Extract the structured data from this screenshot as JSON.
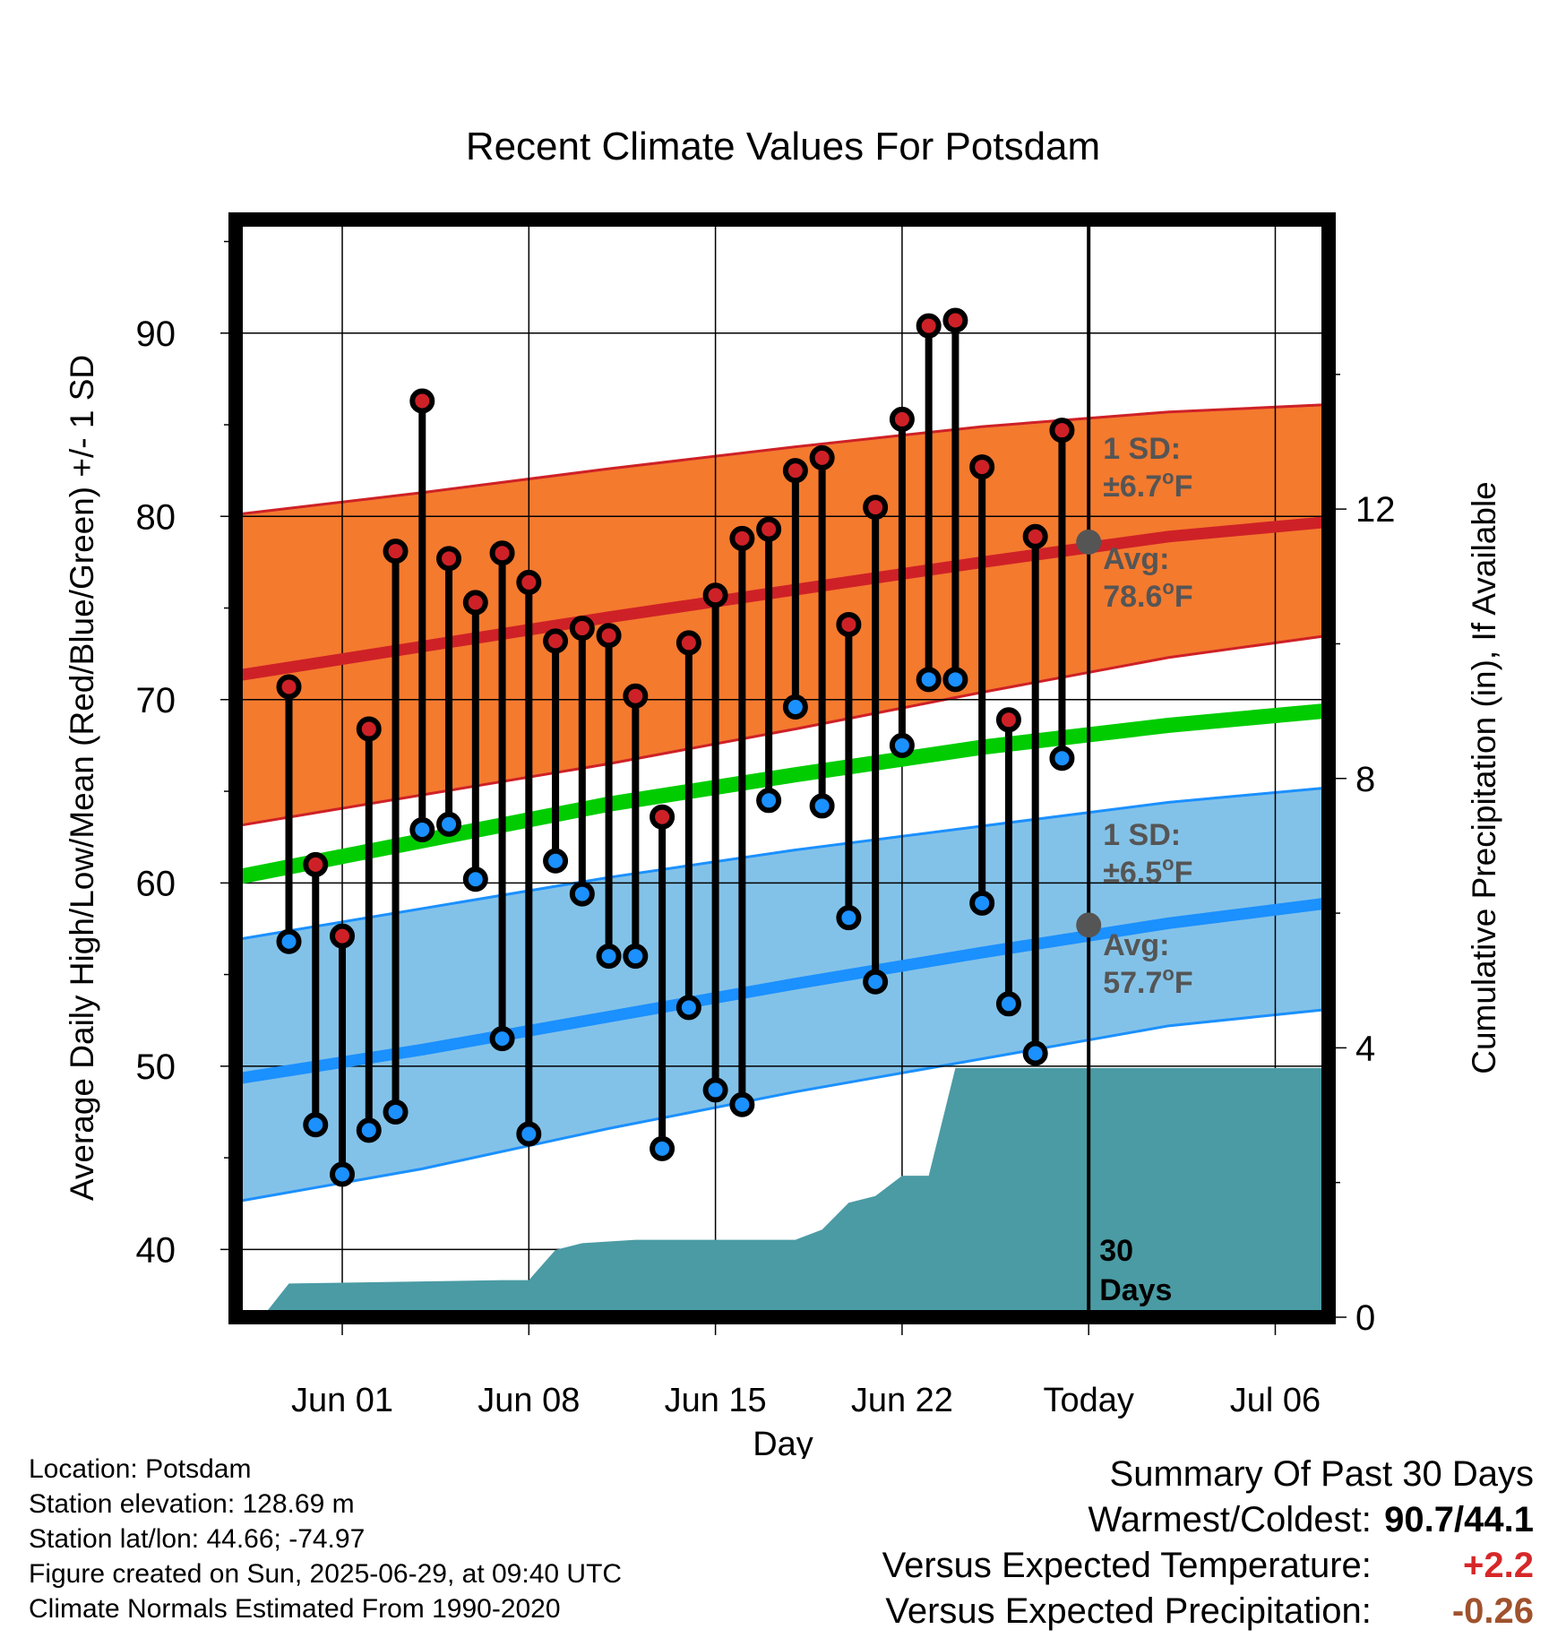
{
  "colors": {
    "high": "#ce2127",
    "low": "#1b90ff",
    "mean": "#00cc00",
    "high_band": "#f47a2e",
    "low_band": "#83c2e8",
    "precip": "#4a9ba4",
    "annotation": "#555555",
    "warm_anomaly": "#d62728",
    "dry_anomaly": "#a0522d"
  },
  "chart_data": {
    "type": "line",
    "title": "Recent Climate Values For Potsdam",
    "xlabel": "Day",
    "ylabel": "Average Daily High/Low/Mean (Red/Blue/Green) +/- 1 SD",
    "y2label": "Cumulative Precipitation (in), If Available",
    "ylim": [
      36.3,
      96.2
    ],
    "y2lim": [
      0,
      16.3
    ],
    "yticks": [
      "40",
      "50",
      "60",
      "70",
      "80",
      "90"
    ],
    "y2ticks": [
      "0",
      "4",
      "8",
      "12"
    ],
    "x_tick_labels": [
      "Jun 01",
      "Jun 08",
      "Jun 15",
      "Jun 22",
      "Today",
      "Jul 06"
    ],
    "x_tick_dates": [
      "2025-06-01",
      "2025-06-08",
      "2025-06-15",
      "2025-06-22",
      "2025-06-29",
      "2025-07-06"
    ],
    "xlim": [
      "2025-05-28",
      "2025-07-08"
    ],
    "grid": true,
    "dates": [
      "2025-05-30",
      "2025-05-31",
      "2025-06-01",
      "2025-06-02",
      "2025-06-03",
      "2025-06-04",
      "2025-06-05",
      "2025-06-06",
      "2025-06-07",
      "2025-06-08",
      "2025-06-09",
      "2025-06-10",
      "2025-06-11",
      "2025-06-12",
      "2025-06-13",
      "2025-06-14",
      "2025-06-15",
      "2025-06-16",
      "2025-06-17",
      "2025-06-18",
      "2025-06-19",
      "2025-06-20",
      "2025-06-21",
      "2025-06-22",
      "2025-06-23",
      "2025-06-24",
      "2025-06-25",
      "2025-06-26",
      "2025-06-27",
      "2025-06-28"
    ],
    "series": [
      {
        "name": "High",
        "values": [
          70.7,
          61.0,
          57.1,
          68.4,
          78.1,
          86.3,
          77.7,
          75.3,
          78.0,
          76.4,
          73.2,
          73.9,
          73.5,
          70.2,
          63.6,
          73.1,
          75.7,
          78.8,
          79.3,
          82.5,
          83.2,
          74.1,
          80.5,
          85.3,
          90.4,
          90.7,
          82.7,
          68.9,
          78.9,
          84.7
        ]
      },
      {
        "name": "Low",
        "values": [
          56.8,
          46.8,
          44.1,
          46.5,
          47.5,
          62.9,
          63.2,
          60.2,
          51.5,
          46.3,
          61.2,
          59.4,
          56.0,
          56.0,
          45.5,
          53.2,
          48.7,
          47.9,
          64.5,
          69.6,
          64.2,
          58.1,
          54.6,
          67.5,
          71.1,
          71.1,
          58.9,
          53.4,
          50.7,
          66.8
        ]
      }
    ],
    "normals": {
      "dates": [
        "2025-05-28",
        "2025-06-04",
        "2025-06-11",
        "2025-06-18",
        "2025-06-25",
        "2025-07-02",
        "2025-07-08"
      ],
      "high_avg": [
        71.3,
        72.9,
        74.5,
        76.0,
        77.5,
        78.9,
        79.7
      ],
      "high_upper": [
        80.1,
        81.3,
        82.6,
        83.8,
        84.9,
        85.7,
        86.1
      ],
      "high_lower": [
        63.1,
        64.8,
        66.5,
        68.4,
        70.4,
        72.3,
        73.5
      ],
      "mean_avg": [
        60.3,
        62.3,
        64.3,
        65.9,
        67.4,
        68.6,
        69.4
      ],
      "low_avg": [
        49.3,
        50.9,
        52.7,
        54.5,
        56.2,
        57.8,
        58.9
      ],
      "low_upper": [
        56.9,
        58.6,
        60.3,
        61.8,
        63.1,
        64.4,
        65.2
      ],
      "low_lower": [
        42.6,
        44.4,
        46.6,
        48.6,
        50.4,
        52.2,
        53.1
      ]
    },
    "precipitation": {
      "dates": [
        "2025-05-29",
        "2025-05-30",
        "2025-06-07",
        "2025-06-08",
        "2025-06-09",
        "2025-06-10",
        "2025-06-12",
        "2025-06-18",
        "2025-06-19",
        "2025-06-20",
        "2025-06-21",
        "2025-06-22",
        "2025-06-23",
        "2025-06-24",
        "2025-06-25",
        "2025-07-08"
      ],
      "values": [
        0.0,
        0.5,
        0.55,
        0.55,
        1.0,
        1.1,
        1.15,
        1.15,
        1.3,
        1.7,
        1.8,
        2.1,
        2.1,
        3.7,
        3.7,
        3.7
      ]
    },
    "today": "2025-06-29",
    "today_high_avg": 78.6,
    "today_low_avg": 57.7
  },
  "annotations": {
    "high_sd_label": "1 SD:",
    "high_sd_value": "±6.7",
    "high_avg_label": "Avg:",
    "high_avg_value": "78.6",
    "low_sd_label": "1 SD:",
    "low_sd_value": "±6.5",
    "low_avg_label": "Avg:",
    "low_avg_value": "57.7",
    "degree_symbol": "o",
    "unit": "F",
    "days_number": "30",
    "days_word": "Days"
  },
  "station": {
    "location": "Location: Potsdam",
    "elevation": "Station elevation: 128.69 m",
    "latlon": "Station lat/lon: 44.66; -74.97",
    "created": "Figure created on Sun, 2025-06-29, at 09:40 UTC",
    "normals": "Climate Normals Estimated From 1990-2020"
  },
  "summary": {
    "title": "Summary Of Past 30 Days",
    "warmest_coldest_label": "Warmest/Coldest:",
    "warmest_coldest_value": "90.7/44.1",
    "temp_label": "Versus Expected Temperature:",
    "temp_value": "+2.2",
    "precip_label": "Versus Expected Precipitation:",
    "precip_value": "-0.26"
  }
}
